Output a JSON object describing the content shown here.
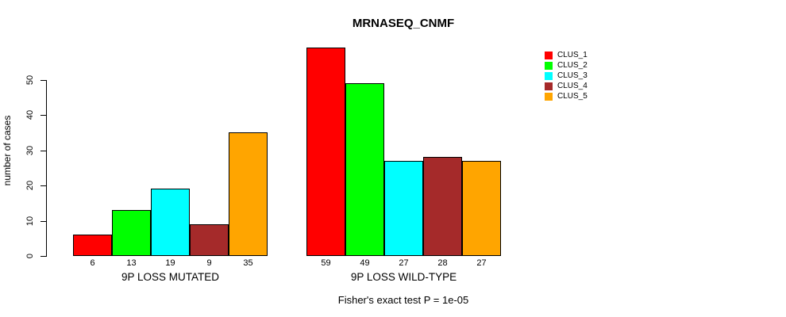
{
  "chart_data": {
    "type": "bar",
    "title": "MRNASEQ_CNMF",
    "ylabel": "number of cases",
    "xlabel": "",
    "ylim": [
      0,
      50
    ],
    "yticks": [
      0,
      10,
      20,
      30,
      40,
      50
    ],
    "grid": false,
    "legend_position": "top-right",
    "bar_value_labels_shown": true,
    "categories": [
      "9P LOSS MUTATED",
      "9P LOSS WILD-TYPE"
    ],
    "series": [
      {
        "name": "CLUS_1",
        "color": "#FF0000",
        "values": [
          6,
          59
        ]
      },
      {
        "name": "CLUS_2",
        "color": "#00FF00",
        "values": [
          13,
          49
        ]
      },
      {
        "name": "CLUS_3",
        "color": "#00FFFF",
        "values": [
          19,
          27
        ]
      },
      {
        "name": "CLUS_4",
        "color": "#A52A2A",
        "values": [
          9,
          28
        ]
      },
      {
        "name": "CLUS_5",
        "color": "#FFA500",
        "values": [
          35,
          27
        ]
      }
    ],
    "annotation": "Fisher's exact test P = 1e-05"
  },
  "colors": {
    "axis": "#000000",
    "text": "#000000",
    "background": "#FFFFFF"
  }
}
